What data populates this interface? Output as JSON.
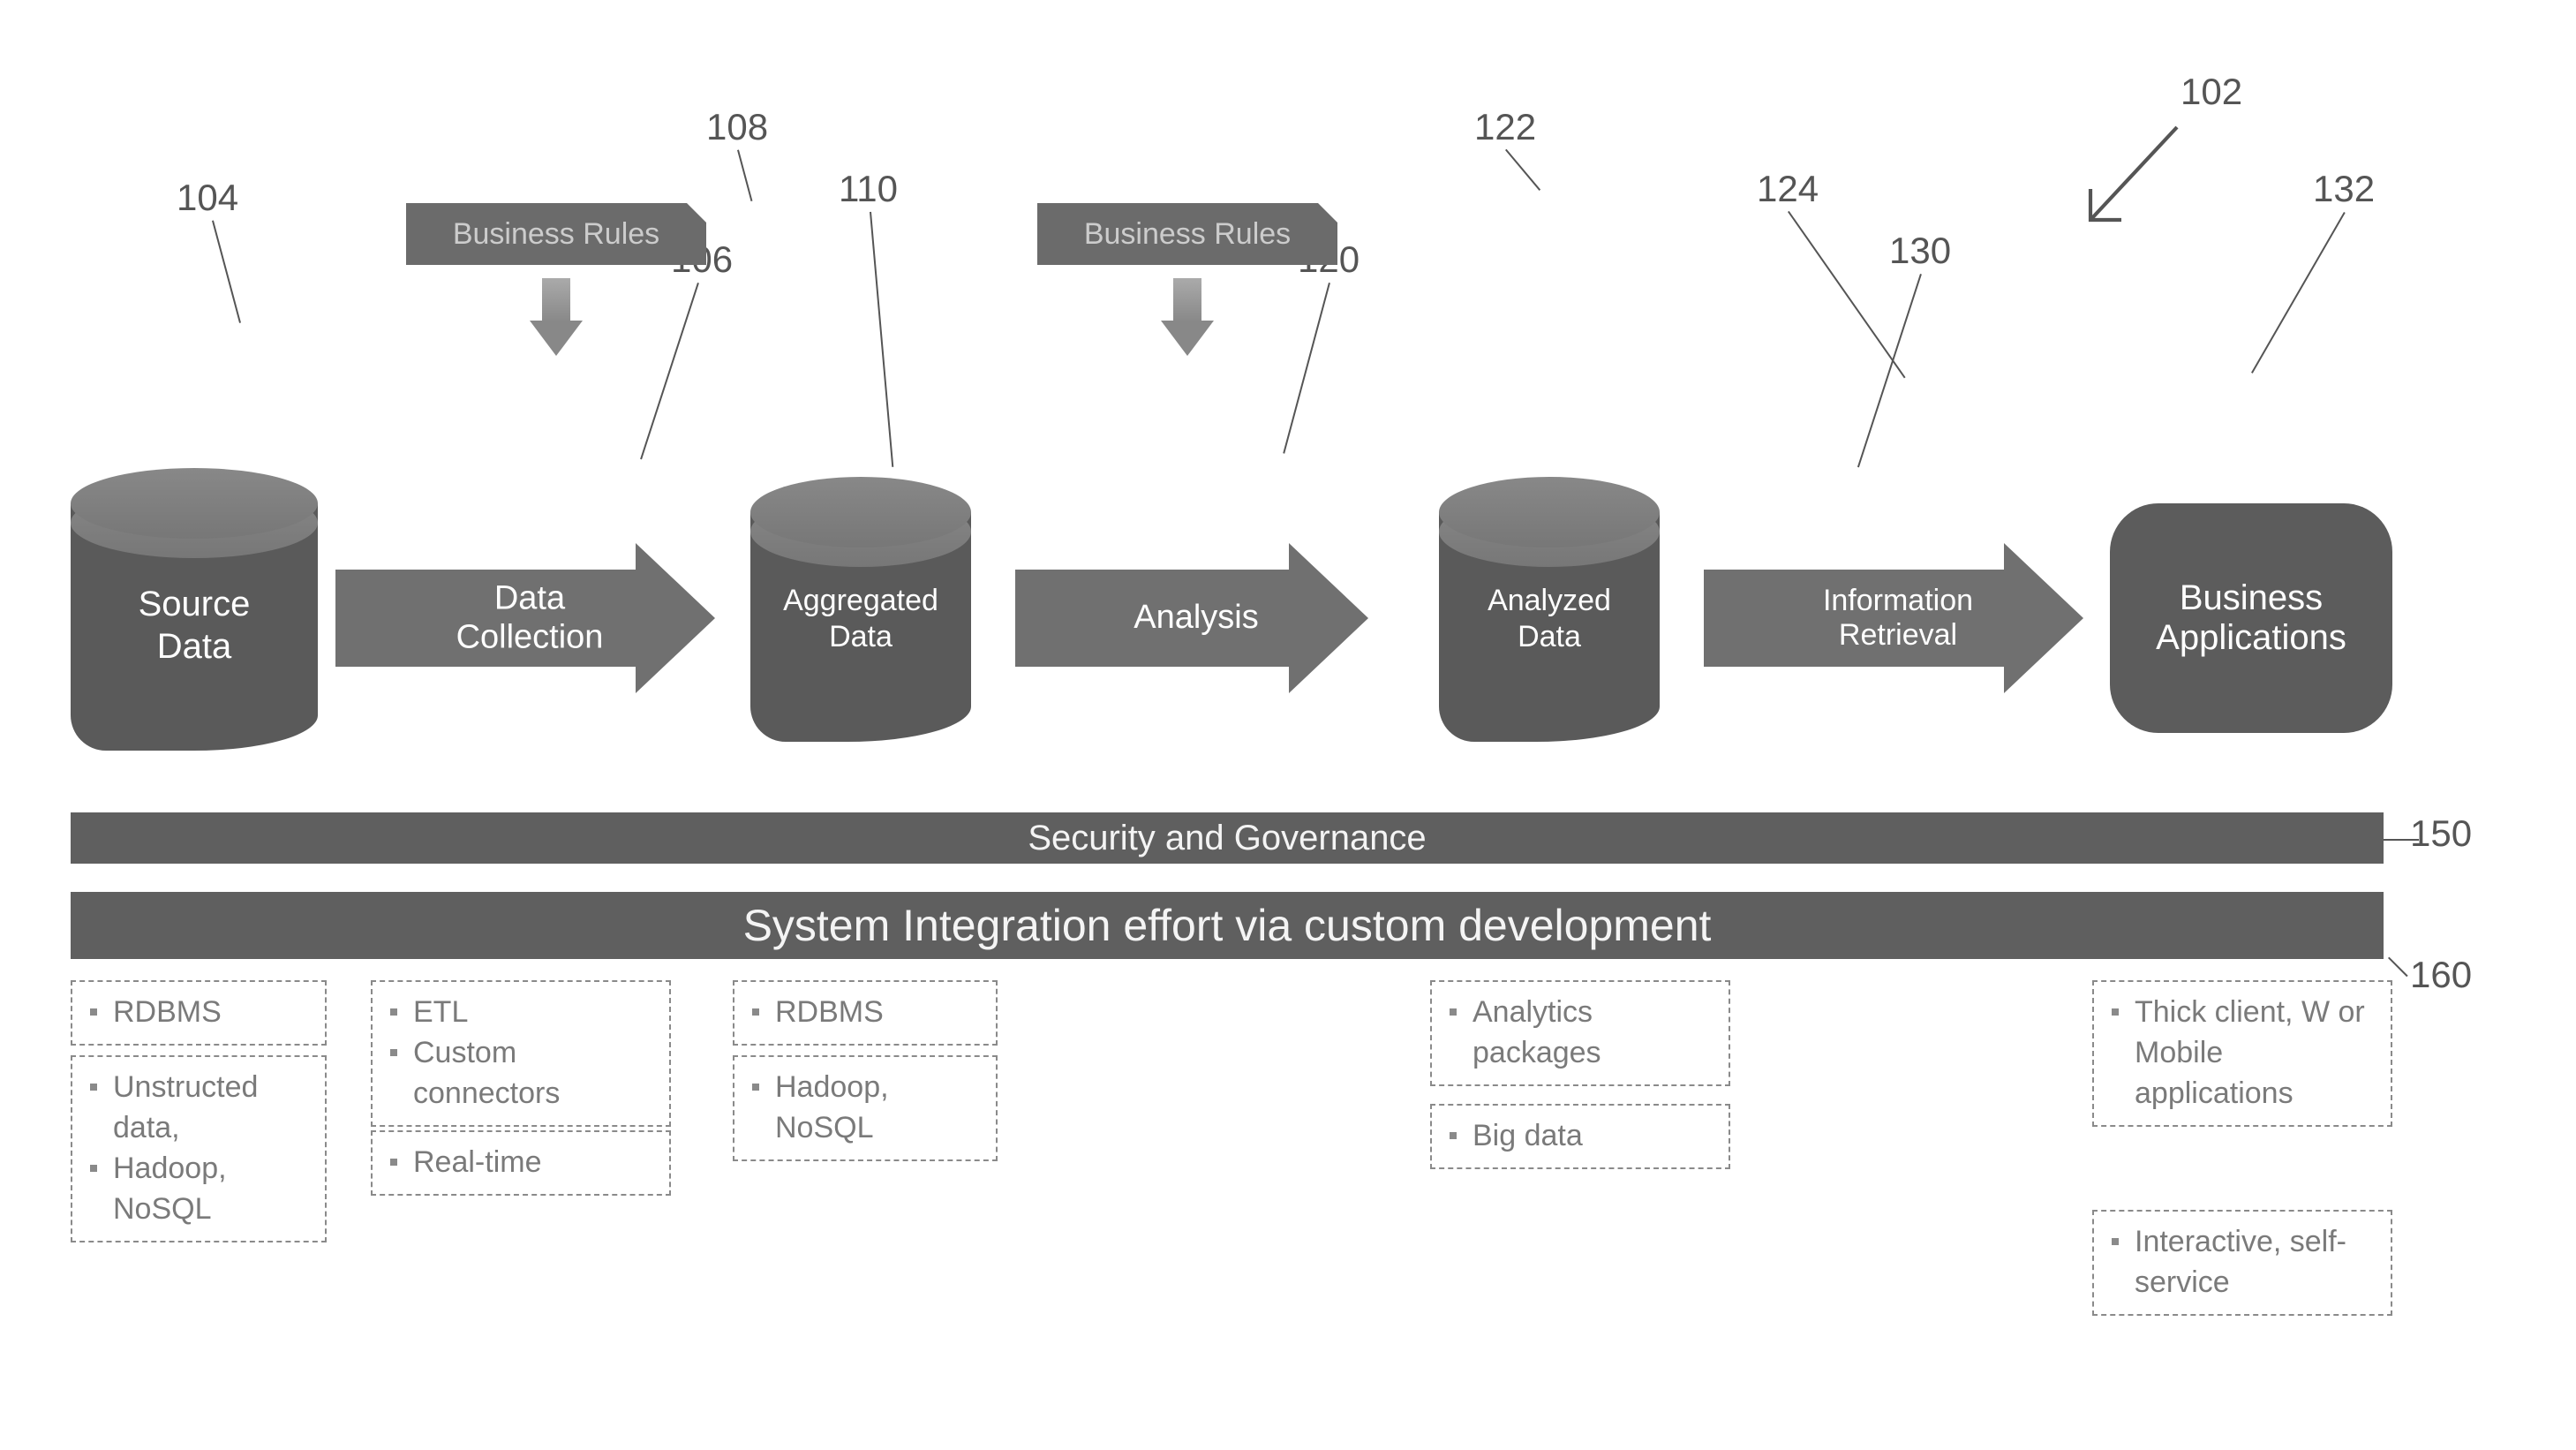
{
  "colors": {
    "shape_fill": "#5f5f5f",
    "shape_fill_light": "#707070",
    "cylinder_top": "#808080",
    "text_on_dark": "#ffffff",
    "muted_text": "#7a7a7a",
    "ref_text": "#555555",
    "dash_border": "#8a8a8a",
    "background": "#ffffff"
  },
  "fonts": {
    "family": "Segoe UI, Arial, sans-serif",
    "ref_label_size_pt": 32,
    "node_label_size_pt": 30,
    "band1_size_pt": 30,
    "band2_size_pt": 38,
    "dash_item_size_pt": 26
  },
  "refs": {
    "r102": "102",
    "r104": "104",
    "r106": "106",
    "r108": "108",
    "r110": "110",
    "r120": "120",
    "r122": "122",
    "r124": "124",
    "r130": "130",
    "r132": "132",
    "r150": "150",
    "r160": "160"
  },
  "flow": {
    "source_data": "Source\nData",
    "data_collection": "Data\nCollection",
    "aggregated_data": "Aggregated\nData",
    "analysis": "Analysis",
    "analyzed_data": "Analyzed\nData",
    "info_retrieval": "Information\nRetrieval",
    "business_apps": "Business\nApplications",
    "business_rules_1": "Business Rules",
    "business_rules_2": "Business Rules"
  },
  "bands": {
    "security": "Security and Governance",
    "integration": "System Integration effort via custom development"
  },
  "tech_groups": {
    "col1_a": [
      "RDBMS"
    ],
    "col1_b": [
      "Unstructed data,",
      "Hadoop, NoSQL"
    ],
    "col2_a": [
      "ETL",
      "Custom connectors"
    ],
    "col2_b": [
      "Real-time"
    ],
    "col3_a": [
      "RDBMS"
    ],
    "col3_b": [
      "Hadoop, NoSQL"
    ],
    "col4_a": [
      "Analytics packages"
    ],
    "col4_b": [
      "Big data"
    ],
    "col5_a": [
      "Thick client, W or Mobile applications"
    ],
    "col5_b": [
      "Interactive, self-service"
    ]
  }
}
